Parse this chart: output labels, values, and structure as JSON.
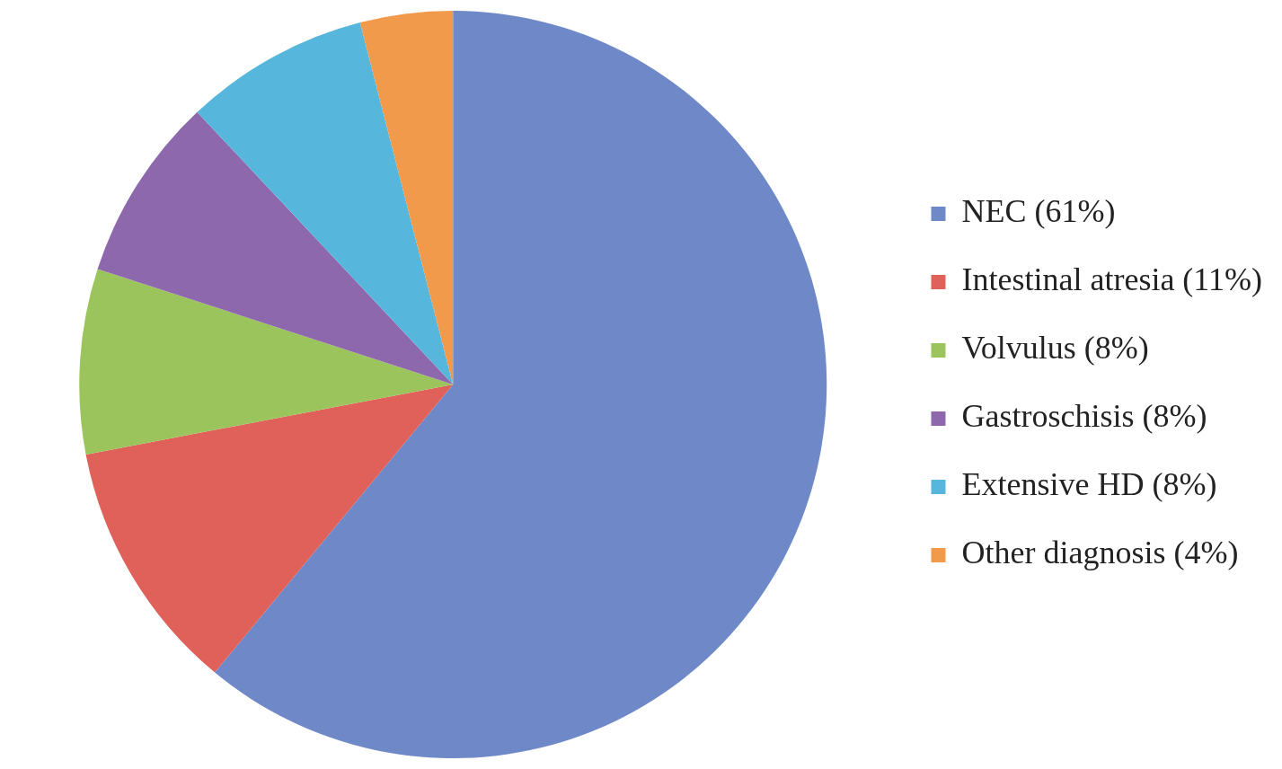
{
  "chart_data": {
    "type": "pie",
    "categories": [
      "NEC (61%)",
      "Intestinal atresia (11%)",
      "Volvulus (8%)",
      "Gastroschisis (8%)",
      "Extensive HD (8%)",
      "Other diagnosis (4%)"
    ],
    "values": [
      61,
      11,
      8,
      8,
      8,
      4
    ],
    "colors": [
      "#6f88c8",
      "#e0605a",
      "#9cc45c",
      "#8e68ad",
      "#57b6dc",
      "#f29a4c"
    ],
    "legend": "right"
  }
}
